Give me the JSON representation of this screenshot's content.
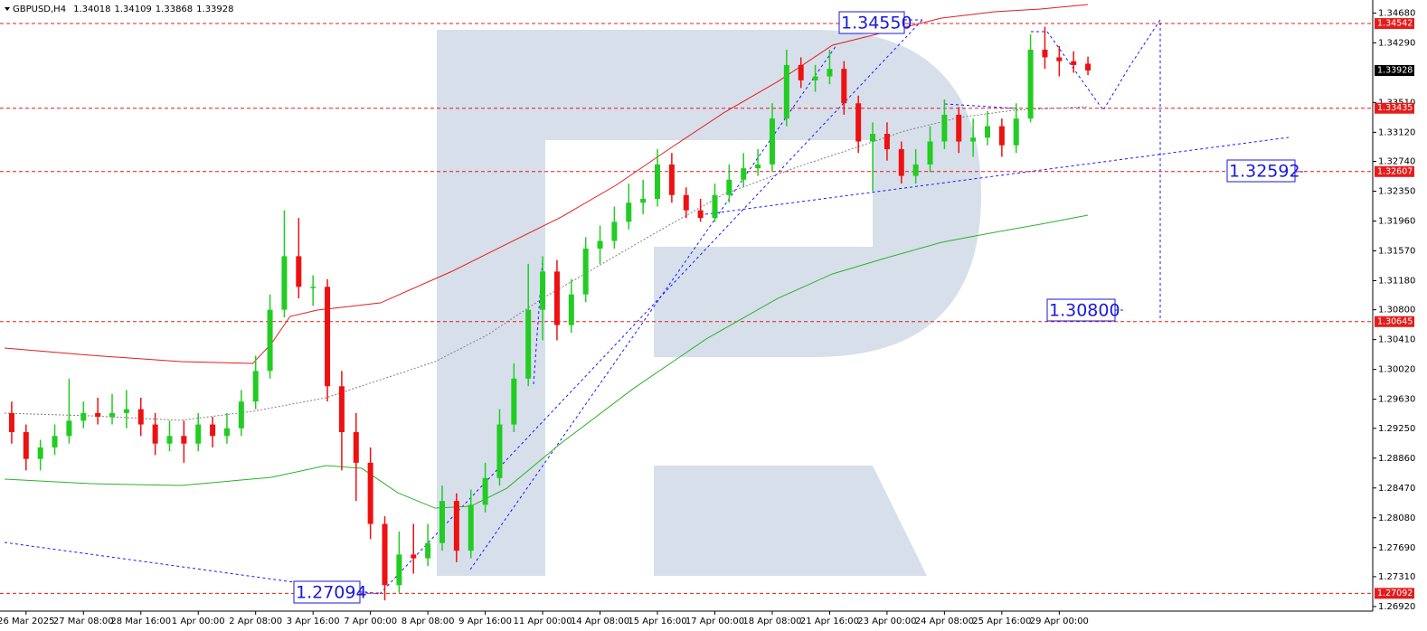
{
  "chart_data": {
    "type": "candlestick",
    "symbol": "GBPUSD,H4",
    "quote": [
      1.34018,
      1.34109,
      1.33868,
      1.33928
    ],
    "up_color": "#22cc22",
    "down_color": "#ee1111",
    "categories": [
      null,
      "26 Mar 2025",
      null,
      null,
      null,
      "27 Mar 08:00",
      null,
      null,
      null,
      "28 Mar 16:00",
      null,
      null,
      null,
      "1 Apr 00:00",
      null,
      null,
      null,
      "2 Apr 08:00",
      null,
      null,
      null,
      "3 Apr 16:00",
      null,
      null,
      null,
      "7 Apr 00:00",
      null,
      null,
      null,
      "8 Apr 08:00",
      null,
      null,
      null,
      "9 Apr 16:00",
      null,
      null,
      null,
      "11 Apr 00:00",
      null,
      null,
      null,
      "14 Apr 08:00",
      null,
      null,
      null,
      "15 Apr 16:00",
      null,
      null,
      null,
      "17 Apr 00:00",
      null,
      null,
      null,
      "18 Apr 08:00",
      null,
      null,
      null,
      "21 Apr 16:00",
      null,
      null,
      null,
      "23 Apr 00:00",
      null,
      null,
      null,
      "24 Apr 08:00",
      null,
      null,
      null,
      "25 Apr 16:00",
      null,
      null,
      null,
      "29 Apr 00:00",
      null,
      null
    ],
    "open": [
      1.2945,
      1.292,
      1.2885,
      1.29,
      1.2915,
      1.2935,
      1.2945,
      1.294,
      1.2945,
      1.295,
      1.293,
      1.2905,
      1.2915,
      1.2905,
      1.293,
      1.2915,
      1.2925,
      1.296,
      1.3,
      1.308,
      1.315,
      1.311,
      1.311,
      1.298,
      1.292,
      1.288,
      1.28,
      1.272,
      1.276,
      1.2755,
      1.2775,
      1.283,
      1.2765,
      1.2825,
      1.286,
      1.293,
      1.299,
      1.308,
      1.313,
      1.306,
      1.31,
      1.316,
      1.317,
      1.3195,
      1.322,
      1.3225,
      1.327,
      1.323,
      1.321,
      1.32,
      1.323,
      1.325,
      1.3265,
      1.327,
      1.333,
      1.34,
      1.338,
      1.3385,
      1.3395,
      1.335,
      1.33,
      1.331,
      1.329,
      1.3255,
      1.327,
      1.33,
      1.3335,
      1.33,
      1.3305,
      1.332,
      1.3295,
      1.333,
      1.342,
      1.341,
      1.3405,
      1.34018
    ],
    "high": [
      1.296,
      1.293,
      1.291,
      1.293,
      1.299,
      1.296,
      1.2965,
      1.297,
      1.2975,
      1.2965,
      1.2945,
      1.2935,
      1.2935,
      1.2945,
      1.294,
      1.2945,
      1.2975,
      1.302,
      1.31,
      1.321,
      1.32,
      1.3125,
      1.312,
      1.3,
      1.2945,
      1.29,
      1.281,
      1.279,
      1.28,
      1.28,
      1.285,
      1.284,
      1.2845,
      1.288,
      1.295,
      1.301,
      1.314,
      1.315,
      1.3145,
      1.312,
      1.3175,
      1.319,
      1.3215,
      1.3245,
      1.325,
      1.329,
      1.3285,
      1.324,
      1.3225,
      1.3245,
      1.327,
      1.3285,
      1.329,
      1.335,
      1.342,
      1.341,
      1.34,
      1.342,
      1.3405,
      1.336,
      1.3325,
      1.3325,
      1.33,
      1.329,
      1.332,
      1.3355,
      1.3345,
      1.333,
      1.334,
      1.333,
      1.335,
      1.344,
      1.345,
      1.3425,
      1.3418,
      1.34109
    ],
    "low": [
      1.2905,
      1.287,
      1.287,
      1.289,
      1.2905,
      1.2925,
      1.293,
      1.293,
      1.2925,
      1.2915,
      1.289,
      1.2895,
      1.288,
      1.2895,
      1.29,
      1.2905,
      1.2915,
      1.295,
      1.299,
      1.307,
      1.3095,
      1.3085,
      1.296,
      1.287,
      1.283,
      1.278,
      1.27,
      1.271,
      1.2735,
      1.2745,
      1.2765,
      1.275,
      1.2755,
      1.2815,
      1.285,
      1.292,
      1.298,
      1.304,
      1.304,
      1.305,
      1.309,
      1.314,
      1.316,
      1.3185,
      1.3205,
      1.3215,
      1.322,
      1.32,
      1.3195,
      1.3195,
      1.322,
      1.324,
      1.3255,
      1.326,
      1.332,
      1.337,
      1.3365,
      1.3375,
      1.3335,
      1.3285,
      1.3235,
      1.3275,
      1.3245,
      1.3245,
      1.326,
      1.329,
      1.3285,
      1.328,
      1.3295,
      1.328,
      1.3285,
      1.3325,
      1.3395,
      1.3385,
      1.339,
      1.33868
    ],
    "close": [
      1.292,
      1.2885,
      1.29,
      1.2915,
      1.2935,
      1.2945,
      1.294,
      1.2945,
      1.295,
      1.293,
      1.2905,
      1.2915,
      1.2905,
      1.293,
      1.2915,
      1.2925,
      1.296,
      1.3,
      1.308,
      1.315,
      1.311,
      1.311,
      1.298,
      1.292,
      1.288,
      1.28,
      1.272,
      1.276,
      1.2755,
      1.2775,
      1.283,
      1.2765,
      1.2825,
      1.286,
      1.293,
      1.299,
      1.308,
      1.313,
      1.306,
      1.31,
      1.316,
      1.317,
      1.3195,
      1.322,
      1.3225,
      1.327,
      1.323,
      1.321,
      1.32,
      1.323,
      1.325,
      1.3265,
      1.327,
      1.333,
      1.34,
      1.338,
      1.3385,
      1.3395,
      1.335,
      1.33,
      1.331,
      1.329,
      1.3255,
      1.327,
      1.33,
      1.3335,
      1.33,
      1.3305,
      1.332,
      1.3295,
      1.333,
      1.342,
      1.341,
      1.3405,
      1.34,
      1.33928
    ],
    "indicators": [
      {
        "color": "#e51c1c",
        "dash": "none",
        "x": [
          -0.5,
          5.5,
          11.8,
          16.8,
          18.1,
          19.4,
          21.3,
          25.7,
          30.7,
          34.5,
          38.3,
          42.1,
          45.8,
          49.6,
          53.4,
          57.2,
          61,
          64.8,
          68.5,
          71.7,
          75
        ],
        "values": [
          1.30299,
          1.30205,
          1.30122,
          1.30098,
          1.30358,
          1.30713,
          1.30796,
          1.3089,
          1.31304,
          1.31659,
          1.32013,
          1.32427,
          1.329,
          1.33373,
          1.33786,
          1.34259,
          1.34436,
          1.34614,
          1.34696,
          1.34732,
          1.34791
        ]
      },
      {
        "color": "#2bb32b",
        "dash": "none",
        "x": [
          -0.5,
          5.5,
          11.8,
          18.1,
          21.9,
          24.4,
          26.9,
          29.5,
          32,
          34.5,
          38.3,
          43.3,
          48.4,
          53.4,
          57.2,
          61,
          64.8,
          68.5,
          71.7,
          75
        ],
        "values": [
          1.28585,
          1.28526,
          1.28503,
          1.28609,
          1.28763,
          1.28727,
          1.28408,
          1.28207,
          1.28231,
          1.28467,
          1.29058,
          1.29767,
          1.30418,
          1.3095,
          1.31269,
          1.31481,
          1.31682,
          1.31812,
          1.31919,
          1.32037
        ]
      },
      {
        "color": "#808080",
        "dash": "2,2",
        "x": [
          -0.5,
          5.5,
          11.8,
          16.8,
          21.9,
          25.7,
          29.5,
          33.2,
          37,
          40.8,
          44.6,
          49.6,
          54.7,
          58.5,
          62.2,
          66,
          69.8,
          75
        ],
        "values": [
          1.29448,
          1.29413,
          1.29354,
          1.29472,
          1.29649,
          1.29885,
          1.30122,
          1.30477,
          1.3095,
          1.31363,
          1.31777,
          1.32309,
          1.32664,
          1.329,
          1.33136,
          1.33313,
          1.33408,
          1.33455
        ]
      }
    ],
    "levels": [
      1.34542,
      1.33435,
      1.32607,
      1.30645,
      1.27092
    ],
    "level_color": "#e51c1c",
    "current_price": 1.33928,
    "annotations": [
      "1.34550",
      "1.32592",
      "1.30800",
      "1.27094"
    ],
    "ylim": [
      1.2686,
      1.3485
    ],
    "yticks": [
      {
        "value": 1.3468,
        "label": "1.34680"
      },
      {
        "value": 1.3429,
        "label": "1.34290"
      },
      {
        "value": 1.3351,
        "label": "1.33510"
      },
      {
        "value": 1.3312,
        "label": "1.33120"
      },
      {
        "value": 1.3274,
        "label": "1.32740"
      },
      {
        "value": 1.3235,
        "label": "1.32350"
      },
      {
        "value": 1.3196,
        "label": "1.31960"
      },
      {
        "value": 1.3157,
        "label": "1.31570"
      },
      {
        "value": 1.3118,
        "label": "1.31180"
      },
      {
        "value": 1.308,
        "label": "1.30800"
      },
      {
        "value": 1.3041,
        "label": "1.30410"
      },
      {
        "value": 1.3002,
        "label": "1.30020"
      },
      {
        "value": 1.2963,
        "label": "1.29630"
      },
      {
        "value": 1.2925,
        "label": "1.29250"
      },
      {
        "value": 1.2886,
        "label": "1.28860"
      },
      {
        "value": 1.2847,
        "label": "1.28470"
      },
      {
        "value": 1.2808,
        "label": "1.28080"
      },
      {
        "value": 1.2769,
        "label": "1.27690"
      },
      {
        "value": 1.2731,
        "label": "1.27310"
      },
      {
        "value": 1.2692,
        "label": "1.26920"
      }
    ]
  }
}
